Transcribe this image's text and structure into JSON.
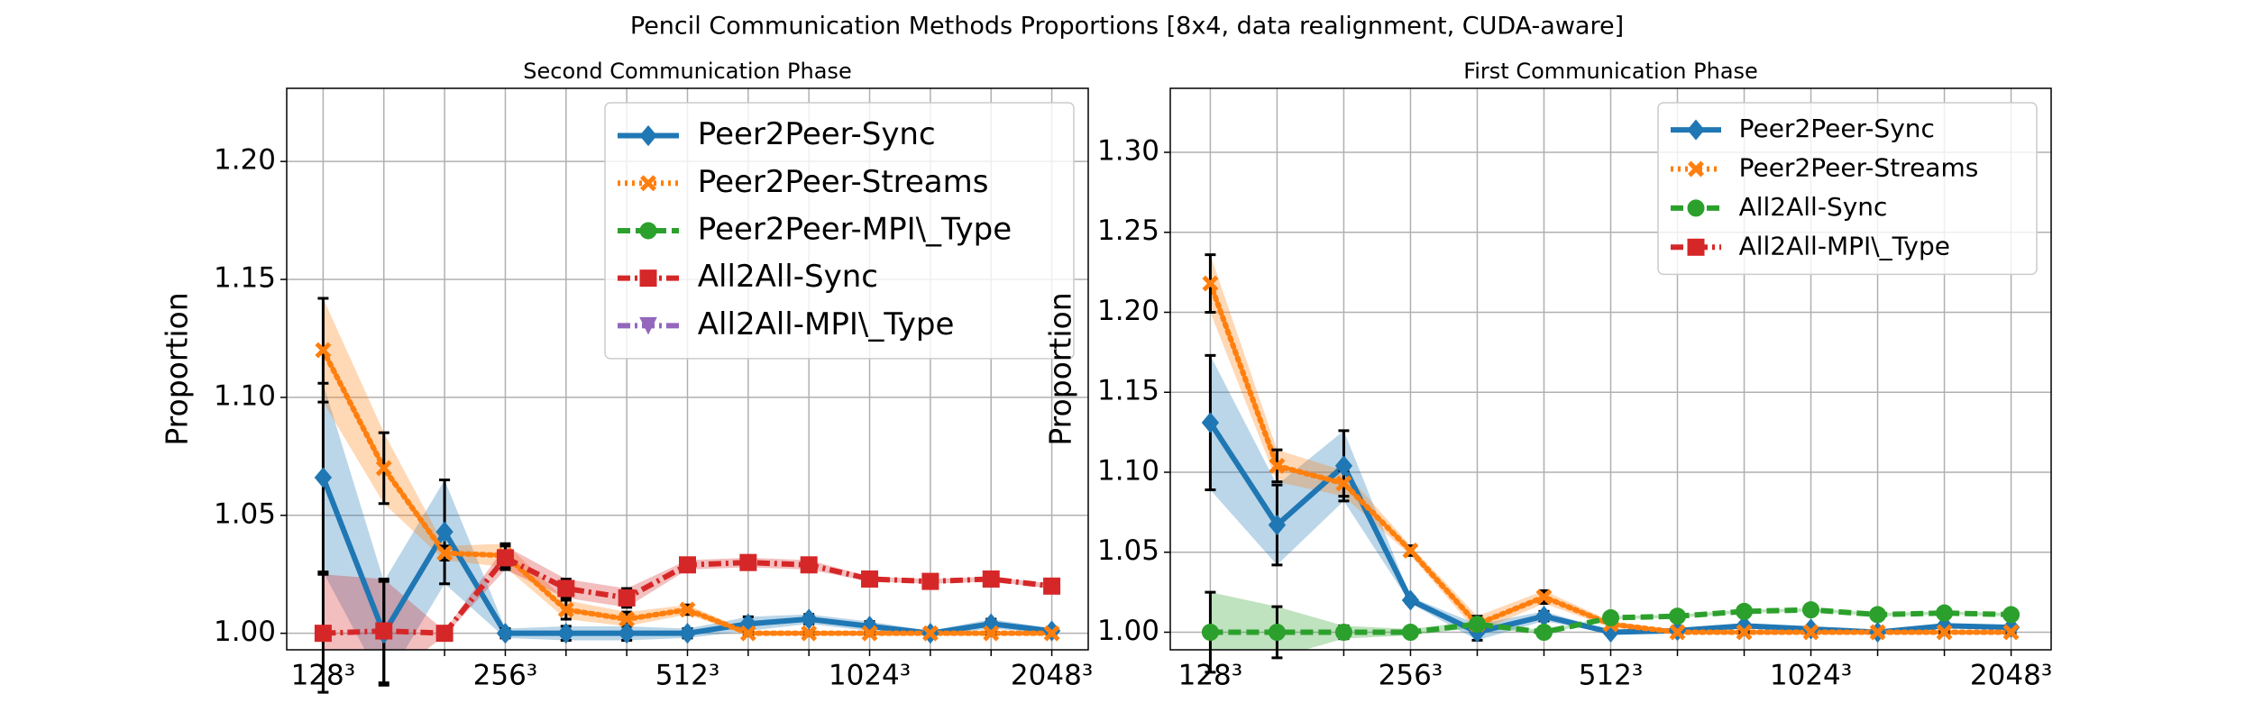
{
  "title": "Pencil Communication Methods Proportions [8x4, data realignment, CUDA-aware]",
  "chart_data": [
    {
      "type": "line",
      "title": "Second Communication Phase",
      "ylabel": "Proportion",
      "categories": [
        "128³",
        null,
        null,
        "256³",
        null,
        null,
        "512³",
        null,
        null,
        "1024³",
        null,
        null,
        "2048³"
      ],
      "xlim": [
        -0.6,
        12.6
      ],
      "ylim": [
        0.993,
        1.231
      ],
      "yticks": [
        {
          "value": 1.0,
          "label": "1.00"
        },
        1.05,
        {
          "value": 1.1,
          "label": "1.10"
        },
        1.15,
        {
          "value": 1.2,
          "label": "1.20"
        }
      ],
      "grid": true,
      "legend": "upper right",
      "series": [
        {
          "name": "Peer2Peer-Sync",
          "color": "#1f77b4",
          "marker": "diamond",
          "dash": "solid",
          "values": [
            1.066,
            1.0,
            1.043,
            1.0,
            1.0,
            1.0,
            1.0,
            1.004,
            1.006,
            1.003,
            1.0,
            1.004,
            1.001
          ],
          "errors": [
            0.04,
            0.022,
            0.022,
            0.002,
            0.003,
            0.003,
            0.002,
            0.003,
            0.002,
            0.002,
            0.001,
            0.002,
            0.001
          ]
        },
        {
          "name": "Peer2Peer-Streams",
          "color": "#ff7f0e",
          "marker": "x",
          "dash": "dotted",
          "values": [
            1.12,
            1.07,
            1.034,
            1.033,
            1.01,
            1.006,
            1.01,
            1.0,
            1.0,
            1.0,
            1.0,
            1.0,
            1.0
          ],
          "errors": [
            0.022,
            0.015,
            0.003,
            0.005,
            0.004,
            0.003,
            0.002,
            0.001,
            0.001,
            0.001,
            0.001,
            0.001,
            0.001
          ]
        },
        {
          "name": "Peer2Peer-MPI\\_Type",
          "color": "#2ca02c",
          "marker": "circle",
          "dash": "dashed",
          "values": [
            null,
            null,
            null,
            null,
            null,
            null,
            null,
            null,
            null,
            null,
            null,
            null,
            null
          ],
          "errors": [
            null,
            null,
            null,
            null,
            null,
            null,
            null,
            null,
            null,
            null,
            null,
            null,
            null
          ]
        },
        {
          "name": "All2All-Sync",
          "color": "#d62728",
          "marker": "square",
          "dash": "dashdot",
          "values": [
            1.0,
            1.001,
            1.0,
            1.032,
            1.019,
            1.015,
            1.029,
            1.03,
            1.029,
            1.023,
            1.022,
            1.023,
            1.02
          ],
          "errors": [
            0.025,
            0.022,
            0.001,
            0.005,
            0.004,
            0.004,
            0.002,
            0.002,
            0.002,
            0.001,
            0.001,
            0.001,
            0.001
          ]
        },
        {
          "name": "All2All-MPI\\_Type",
          "color": "#9467bd",
          "marker": "triangle",
          "dash": "dashdot",
          "values": [
            null,
            null,
            null,
            null,
            null,
            null,
            null,
            null,
            null,
            null,
            null,
            null,
            null
          ],
          "errors": [
            null,
            null,
            null,
            null,
            null,
            null,
            null,
            null,
            null,
            null,
            null,
            null,
            null
          ]
        }
      ]
    },
    {
      "type": "line",
      "title": "First Communication Phase",
      "ylabel": "Proportion",
      "categories": [
        "128³",
        null,
        null,
        "256³",
        null,
        null,
        "512³",
        null,
        null,
        "1024³",
        null,
        null,
        "2048³"
      ],
      "xlim": [
        -0.6,
        12.6
      ],
      "ylim": [
        0.989,
        1.34
      ],
      "yticks": [
        {
          "value": 1.0,
          "label": "1.00"
        },
        1.05,
        {
          "value": 1.1,
          "label": "1.10"
        },
        1.15,
        {
          "value": 1.2,
          "label": "1.20"
        },
        1.25,
        {
          "value": 1.3,
          "label": "1.30"
        }
      ],
      "grid": true,
      "legend": "upper right",
      "series": [
        {
          "name": "Peer2Peer-Sync",
          "color": "#1f77b4",
          "marker": "diamond",
          "dash": "solid",
          "values": [
            1.131,
            1.067,
            1.104,
            1.02,
            1.0,
            1.01,
            1.0,
            1.001,
            1.004,
            1.002,
            1.0,
            1.004,
            1.003
          ],
          "errors": [
            0.042,
            0.025,
            0.022,
            0.002,
            0.005,
            0.003,
            0.001,
            0.001,
            0.001,
            0.001,
            0.001,
            0.001,
            0.001
          ]
        },
        {
          "name": "Peer2Peer-Streams",
          "color": "#ff7f0e",
          "marker": "x",
          "dash": "dotted",
          "values": [
            1.218,
            1.104,
            1.093,
            1.051,
            1.005,
            1.022,
            1.005,
            1.0,
            1.0,
            1.0,
            1.0,
            1.0,
            1.0
          ],
          "errors": [
            0.018,
            0.01,
            0.008,
            0.003,
            0.005,
            0.004,
            0.002,
            0.001,
            0.001,
            0.001,
            0.001,
            0.001,
            0.001
          ]
        },
        {
          "name": "All2All-Sync",
          "color": "#2ca02c",
          "marker": "circle",
          "dash": "dashed",
          "values": [
            1.0,
            1.0,
            1.0,
            1.0,
            1.005,
            1.0,
            1.009,
            1.01,
            1.013,
            1.014,
            1.011,
            1.012,
            1.011
          ],
          "errors": [
            0.025,
            0.016,
            0.004,
            0.002,
            0.002,
            0.001,
            0.001,
            0.001,
            0.001,
            0.001,
            0.001,
            0.001,
            0.001
          ]
        },
        {
          "name": "All2All-MPI\\_Type",
          "color": "#d62728",
          "marker": "square",
          "dash": "dashdot",
          "values": [
            null,
            null,
            null,
            null,
            null,
            null,
            null,
            null,
            null,
            null,
            null,
            null,
            null
          ],
          "errors": [
            null,
            null,
            null,
            null,
            null,
            null,
            null,
            null,
            null,
            null,
            null,
            null,
            null
          ]
        }
      ]
    }
  ]
}
